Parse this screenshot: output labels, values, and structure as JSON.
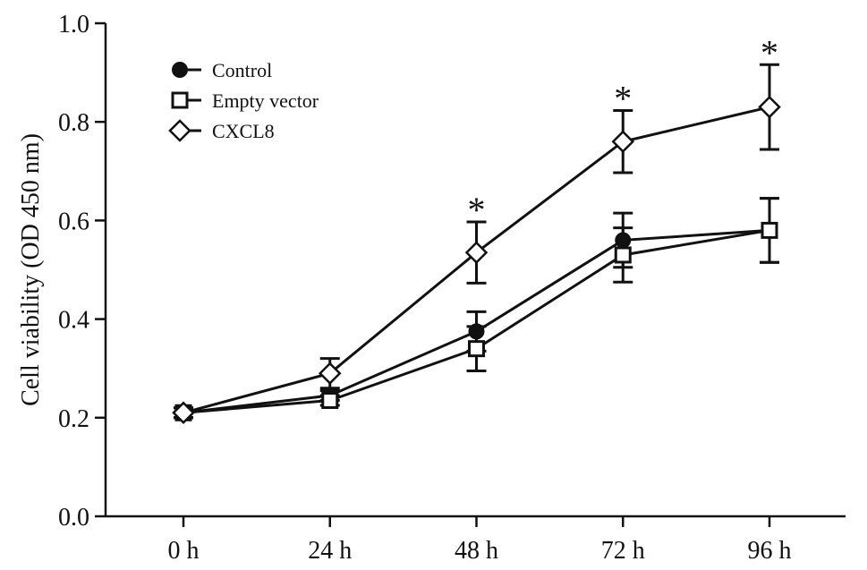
{
  "chart_data": {
    "type": "line",
    "title": "",
    "xlabel": "",
    "ylabel": "Cell viability (OD 450 nm)",
    "categories": [
      "0 h",
      "24 h",
      "48 h",
      "72 h",
      "96 h"
    ],
    "ylim": [
      0.0,
      1.0
    ],
    "yticks": [
      "0.0",
      "0.2",
      "0.4",
      "0.6",
      "0.8",
      "1.0"
    ],
    "grid": false,
    "legend_position": "top-left",
    "series": [
      {
        "name": "Control",
        "marker": "circle-filled",
        "values": [
          0.21,
          0.245,
          0.375,
          0.56,
          0.58
        ],
        "errors": [
          0.01,
          0.01,
          0.04,
          0.055,
          0.065
        ]
      },
      {
        "name": "Empty vector",
        "marker": "square-open",
        "values": [
          0.21,
          0.235,
          0.34,
          0.53,
          0.58
        ],
        "errors": [
          0.01,
          0.01,
          0.045,
          0.055,
          0.065
        ]
      },
      {
        "name": "CXCL8",
        "marker": "diamond-open",
        "values": [
          0.21,
          0.29,
          0.535,
          0.76,
          0.83
        ],
        "errors": [
          0.01,
          0.03,
          0.062,
          0.063,
          0.086
        ]
      }
    ],
    "annotations": [
      {
        "x": "48 h",
        "text": "*"
      },
      {
        "x": "72 h",
        "text": "*"
      },
      {
        "x": "96 h",
        "text": "*"
      }
    ]
  }
}
